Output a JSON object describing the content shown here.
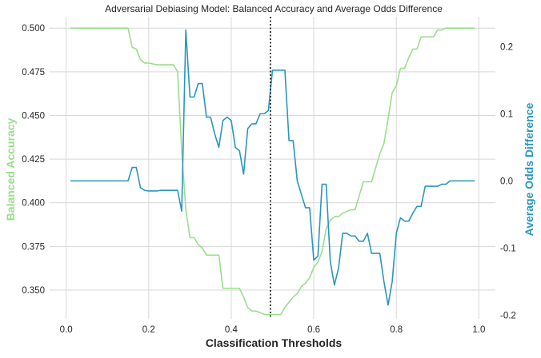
{
  "chart_data": {
    "type": "line",
    "title": "Adversarial Debiasing Model: Balanced Accuracy and Average Odds Difference",
    "xlabel": "Classification Thresholds",
    "ylabel_left": "Balanced Accuracy",
    "ylabel_right": "Average Odds Difference",
    "xlim": [
      -0.04,
      1.04
    ],
    "ylim_left": [
      0.3335,
      0.5065
    ],
    "ylim_right": [
      -0.2055,
      0.2445
    ],
    "x_ticks": [
      0.0,
      0.2,
      0.4,
      0.6,
      0.8,
      1.0
    ],
    "x_tick_labels": [
      "0.0",
      "0.2",
      "0.4",
      "0.6",
      "0.8",
      "1.0"
    ],
    "y_left_ticks": [
      0.35,
      0.375,
      0.4,
      0.425,
      0.45,
      0.475,
      0.5
    ],
    "y_left_tick_labels": [
      "0.350",
      "0.375",
      "0.400",
      "0.425",
      "0.450",
      "0.475",
      "0.500"
    ],
    "y_right_ticks": [
      -0.2,
      -0.1,
      0.0,
      0.1,
      0.2
    ],
    "y_right_tick_labels": [
      "-0.2",
      "-0.1",
      "0.0",
      "0.1",
      "0.2"
    ],
    "grid": true,
    "vline_x": 0.495,
    "colors": {
      "balanced_accuracy": "#98df8a",
      "average_odds_difference": "#2a96bd",
      "grid": "#d7d7d7",
      "vline": "#000000"
    },
    "series": [
      {
        "axis": "left",
        "x": [
          0.01,
          0.15,
          0.16,
          0.17,
          0.18,
          0.19,
          0.2,
          0.22,
          0.23,
          0.25,
          0.26,
          0.27,
          0.28,
          0.29,
          0.3,
          0.31,
          0.32,
          0.33,
          0.34,
          0.35,
          0.36,
          0.37,
          0.38,
          0.39,
          0.4,
          0.41,
          0.42,
          0.43,
          0.44,
          0.45,
          0.46,
          0.47,
          0.48,
          0.49,
          0.5,
          0.51,
          0.52,
          0.53,
          0.54,
          0.55,
          0.56,
          0.57,
          0.58,
          0.59,
          0.6,
          0.61,
          0.62,
          0.63,
          0.64,
          0.65,
          0.66,
          0.67,
          0.68,
          0.69,
          0.7,
          0.71,
          0.72,
          0.73,
          0.74,
          0.75,
          0.76,
          0.77,
          0.78,
          0.79,
          0.8,
          0.81,
          0.82,
          0.83,
          0.84,
          0.85,
          0.86,
          0.87,
          0.88,
          0.89,
          0.9,
          0.91,
          0.92,
          0.93,
          0.94,
          0.99
        ],
        "values": [
          0.5,
          0.5,
          0.489,
          0.488,
          0.482,
          0.48,
          0.48,
          0.479,
          0.479,
          0.479,
          0.479,
          0.475,
          0.43,
          0.396,
          0.38,
          0.38,
          0.376,
          0.374,
          0.37,
          0.37,
          0.37,
          0.37,
          0.351,
          0.351,
          0.351,
          0.351,
          0.351,
          0.346,
          0.34,
          0.338,
          0.338,
          0.337,
          0.336,
          0.336,
          0.336,
          0.336,
          0.336,
          0.34,
          0.343,
          0.346,
          0.348,
          0.352,
          0.354,
          0.357,
          0.363,
          0.366,
          0.372,
          0.385,
          0.39,
          0.392,
          0.392,
          0.394,
          0.395,
          0.396,
          0.396,
          0.404,
          0.412,
          0.412,
          0.412,
          0.42,
          0.428,
          0.434,
          0.448,
          0.463,
          0.467,
          0.477,
          0.477,
          0.483,
          0.488,
          0.488,
          0.495,
          0.495,
          0.495,
          0.495,
          0.499,
          0.499,
          0.5,
          0.5,
          0.5,
          0.5
        ]
      },
      {
        "axis": "right",
        "x": [
          0.01,
          0.15,
          0.16,
          0.17,
          0.18,
          0.19,
          0.2,
          0.22,
          0.23,
          0.26,
          0.27,
          0.28,
          0.29,
          0.3,
          0.31,
          0.32,
          0.33,
          0.34,
          0.35,
          0.36,
          0.37,
          0.38,
          0.39,
          0.4,
          0.41,
          0.42,
          0.43,
          0.44,
          0.45,
          0.46,
          0.47,
          0.48,
          0.49,
          0.5,
          0.51,
          0.52,
          0.53,
          0.54,
          0.55,
          0.56,
          0.57,
          0.58,
          0.59,
          0.6,
          0.61,
          0.62,
          0.63,
          0.64,
          0.65,
          0.66,
          0.67,
          0.68,
          0.69,
          0.7,
          0.71,
          0.72,
          0.73,
          0.74,
          0.75,
          0.76,
          0.77,
          0.78,
          0.79,
          0.8,
          0.81,
          0.82,
          0.83,
          0.84,
          0.85,
          0.86,
          0.87,
          0.88,
          0.89,
          0.9,
          0.91,
          0.92,
          0.93,
          0.99
        ],
        "values": [
          0.0,
          0.0,
          0.02,
          0.02,
          -0.01,
          -0.014,
          -0.015,
          -0.015,
          -0.014,
          -0.014,
          -0.014,
          -0.045,
          0.225,
          0.125,
          0.125,
          0.145,
          0.145,
          0.095,
          0.095,
          0.07,
          0.05,
          0.09,
          0.095,
          0.09,
          0.05,
          0.045,
          0.01,
          0.078,
          0.085,
          0.085,
          0.1,
          0.1,
          0.105,
          0.165,
          0.165,
          0.165,
          0.165,
          0.06,
          0.06,
          0.0,
          -0.02,
          -0.04,
          -0.04,
          -0.118,
          -0.112,
          -0.005,
          -0.005,
          -0.12,
          -0.155,
          -0.13,
          -0.078,
          -0.078,
          -0.082,
          -0.082,
          -0.09,
          -0.09,
          -0.078,
          -0.108,
          -0.108,
          -0.108,
          -0.15,
          -0.185,
          -0.15,
          -0.078,
          -0.055,
          -0.06,
          -0.06,
          -0.048,
          -0.038,
          -0.038,
          -0.008,
          -0.008,
          -0.008,
          -0.008,
          -0.005,
          -0.005,
          0.0,
          0.0
        ]
      }
    ]
  }
}
